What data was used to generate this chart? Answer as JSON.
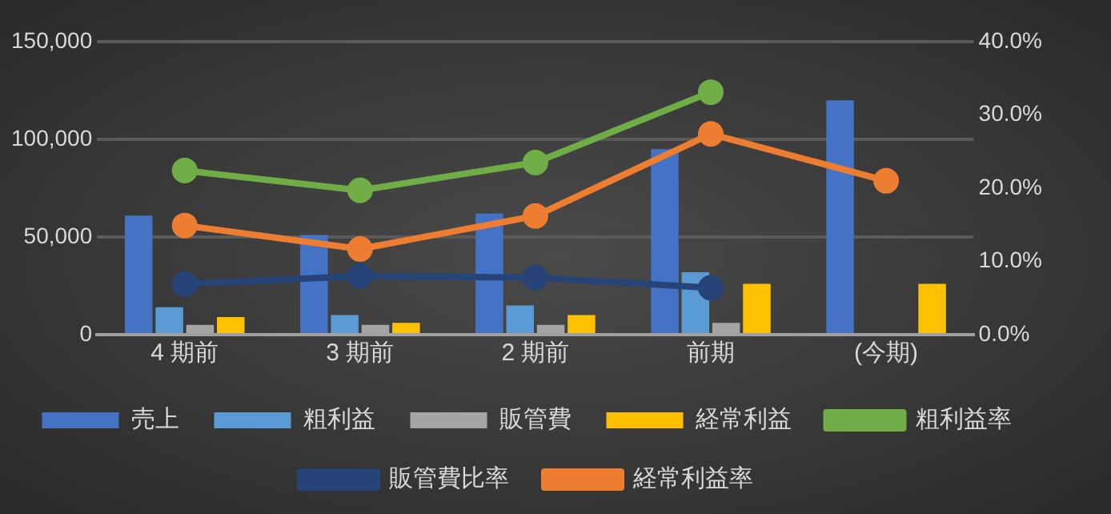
{
  "chart_data": {
    "type": "bar",
    "categories": [
      "4 期前",
      "3 期前",
      "2 期前",
      "前期",
      "(今期)"
    ],
    "series": [
      {
        "name": "売上",
        "color": "#4472c4",
        "values": [
          61000,
          51000,
          62000,
          95000,
          120000
        ]
      },
      {
        "name": "粗利益",
        "color": "#5b9bd5",
        "values": [
          14000,
          10000,
          15000,
          32000,
          null
        ]
      },
      {
        "name": "販管費",
        "color": "#a5a5a5",
        "values": [
          5000,
          5000,
          5000,
          6000,
          null
        ]
      },
      {
        "name": "経常利益",
        "color": "#ffc000",
        "values": [
          9000,
          6000,
          10000,
          26000,
          26000
        ]
      },
      {
        "name": "粗利益率",
        "type": "line",
        "axis": "y2",
        "color": "#70ad47",
        "values": [
          22.4,
          19.7,
          23.5,
          33.1,
          null
        ]
      },
      {
        "name": "販管費比率",
        "type": "line",
        "axis": "y2",
        "color": "#264478",
        "values": [
          6.9,
          8.0,
          7.8,
          6.4,
          null
        ]
      },
      {
        "name": "経常利益率",
        "type": "line",
        "axis": "y2",
        "color": "#ed7d31",
        "values": [
          14.9,
          11.7,
          16.2,
          27.4,
          21.0
        ]
      }
    ],
    "ylim": [
      0,
      150000
    ],
    "yticks": [
      {
        "value": 0,
        "label": "0"
      },
      {
        "value": 50000,
        "label": "50,000"
      },
      {
        "value": 100000,
        "label": "100,000"
      },
      {
        "value": 150000,
        "label": "150,000"
      }
    ],
    "y2lim": [
      0,
      40
    ],
    "y2ticks": [
      {
        "value": 0,
        "label": "0.0%"
      },
      {
        "value": 10,
        "label": "10.0%"
      },
      {
        "value": 20,
        "label": "20.0%"
      },
      {
        "value": 30,
        "label": "30.0%"
      },
      {
        "value": 40,
        "label": "40.0%"
      }
    ],
    "grid": "y",
    "legend": "bottom",
    "marker": "circle",
    "line_style": "solid"
  }
}
